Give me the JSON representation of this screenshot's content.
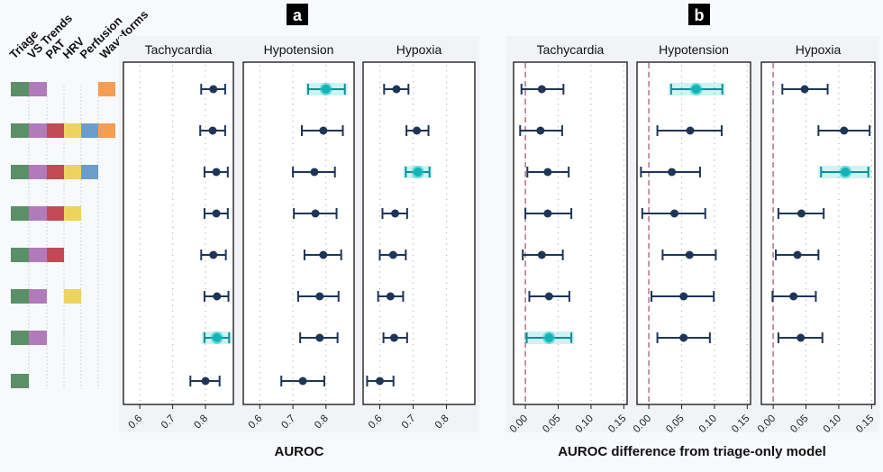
{
  "feature_matrix": {
    "columns": [
      "Triage",
      "VS Trends",
      "PAT",
      "HRV",
      "Perfusion",
      "Waveforms"
    ],
    "colors": [
      "#5a8f67",
      "#b07bbb",
      "#c04b55",
      "#ecd45f",
      "#6b9dcb",
      "#f79d52"
    ],
    "rows": [
      [
        1,
        1,
        0,
        0,
        0,
        1
      ],
      [
        1,
        1,
        1,
        1,
        1,
        1
      ],
      [
        1,
        1,
        1,
        1,
        1,
        0
      ],
      [
        1,
        1,
        1,
        1,
        0,
        0
      ],
      [
        1,
        1,
        1,
        0,
        0,
        0
      ],
      [
        1,
        1,
        0,
        1,
        0,
        0
      ],
      [
        1,
        1,
        0,
        0,
        0,
        0
      ],
      [
        1,
        0,
        0,
        0,
        0,
        0
      ]
    ]
  },
  "colors": {
    "point": "#1f3558",
    "highlight": "#1fc7c7",
    "highlight_dark": "#0e8f96",
    "reference_line": "#b97c8a",
    "grid": "#b5b5b5",
    "strip_bg": "#f1f3f6"
  },
  "chart_data": [
    {
      "panel": "a",
      "type": "scatter",
      "subtype": "forest-plot",
      "xlabel": "AUROC",
      "xlim": [
        0.55,
        0.885
      ],
      "xticks": [
        0.6,
        0.7,
        0.8
      ],
      "xtick_labels": [
        "0.6",
        "0.7",
        "0.8"
      ],
      "grid": "vertical-dotted",
      "reference_line": null,
      "facets": [
        {
          "title": "Tachycardia",
          "estimates": [
            0.824,
            0.822,
            0.833,
            0.833,
            0.824,
            0.835,
            0.835,
            0.8
          ],
          "ci_low": [
            0.787,
            0.784,
            0.797,
            0.797,
            0.787,
            0.797,
            0.797,
            0.754
          ],
          "ci_high": [
            0.86,
            0.86,
            0.868,
            0.868,
            0.862,
            0.87,
            0.872,
            0.843
          ],
          "highlight_row": 6
        },
        {
          "title": "Hypotension",
          "estimates": [
            0.8,
            0.792,
            0.765,
            0.768,
            0.792,
            0.781,
            0.781,
            0.73
          ],
          "ci_low": [
            0.746,
            0.727,
            0.7,
            0.703,
            0.735,
            0.716,
            0.722,
            0.665
          ],
          "ci_high": [
            0.857,
            0.851,
            0.827,
            0.832,
            0.846,
            0.838,
            0.835,
            0.795
          ],
          "highlight_row": 0
        },
        {
          "title": "Hypoxia",
          "estimates": [
            0.65,
            0.711,
            0.714,
            0.646,
            0.64,
            0.632,
            0.643,
            0.6
          ],
          "ci_low": [
            0.613,
            0.68,
            0.678,
            0.608,
            0.6,
            0.595,
            0.611,
            0.562
          ],
          "ci_high": [
            0.686,
            0.746,
            0.749,
            0.682,
            0.678,
            0.67,
            0.682,
            0.641
          ],
          "highlight_row": 2
        }
      ]
    },
    {
      "panel": "b",
      "type": "scatter",
      "subtype": "forest-plot",
      "xlabel": "AUROC difference from triage-only model",
      "xlim": [
        -0.018,
        0.155
      ],
      "xticks": [
        0.0,
        0.05,
        0.1,
        0.15
      ],
      "xtick_labels": [
        "0.00",
        "0.05",
        "0.10",
        "0.15"
      ],
      "grid": "vertical-dotted",
      "reference_line": 0.0,
      "facets": [
        {
          "title": "Tachycardia",
          "estimates": [
            0.025,
            0.023,
            0.034,
            0.034,
            0.025,
            0.036,
            0.036,
            null
          ],
          "ci_low": [
            -0.006,
            -0.008,
            0.003,
            0.0,
            -0.004,
            0.006,
            0.002,
            null
          ],
          "ci_high": [
            0.058,
            0.056,
            0.066,
            0.07,
            0.057,
            0.067,
            0.07,
            null
          ],
          "highlight_row": 6
        },
        {
          "title": "Hypotension",
          "estimates": [
            0.072,
            0.063,
            0.035,
            0.039,
            0.062,
            0.053,
            0.053,
            null
          ],
          "ci_low": [
            0.034,
            0.013,
            -0.012,
            -0.01,
            0.021,
            0.004,
            0.013,
            null
          ],
          "ci_high": [
            0.112,
            0.111,
            0.078,
            0.086,
            0.102,
            0.099,
            0.093,
            null
          ],
          "highlight_row": 0
        },
        {
          "title": "Hypoxia",
          "estimates": [
            0.048,
            0.108,
            0.11,
            0.043,
            0.037,
            0.031,
            0.042,
            null
          ],
          "ci_low": [
            0.014,
            0.069,
            0.073,
            0.008,
            0.004,
            -0.001,
            0.008,
            null
          ],
          "ci_high": [
            0.083,
            0.147,
            0.145,
            0.077,
            0.069,
            0.065,
            0.075,
            null
          ],
          "highlight_row": 2
        }
      ]
    }
  ]
}
